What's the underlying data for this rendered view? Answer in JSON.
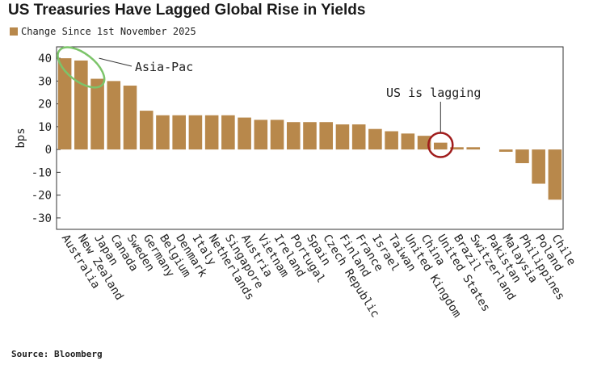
{
  "chart_data": {
    "type": "bar",
    "title": "US Treasuries Have Lagged Global Rise in Yields",
    "legend": "Change Since 1st November 2025",
    "ylabel": "bps",
    "source": "Source: Bloomberg",
    "ylim": [
      -35,
      45
    ],
    "yticks": [
      40,
      30,
      20,
      10,
      0,
      -10,
      -20,
      -30
    ],
    "grid": false,
    "bar_color": "#b8884b",
    "categories": [
      "Australia",
      "New Zealand",
      "Japan",
      "Canada",
      "Sweden",
      "Germany",
      "Belgium",
      "Denmark",
      "Italy",
      "Netherlands",
      "Singapore",
      "Austria",
      "Vietnam",
      "Ireland",
      "Portugal",
      "Spain",
      "Czech Republic",
      "Finland",
      "France",
      "Israel",
      "Taiwan",
      "United Kingdom",
      "China",
      "United States",
      "Brazil",
      "Switzerland",
      "Pakistan",
      "Malaysia",
      "Philippines",
      "Poland",
      "Chile"
    ],
    "values": [
      40,
      39,
      31,
      30,
      28,
      17,
      15,
      15,
      15,
      15,
      15,
      14,
      13,
      13,
      12,
      12,
      12,
      11,
      11,
      9,
      8,
      7,
      6,
      3,
      1,
      1,
      0,
      -1,
      -6,
      -15,
      -22
    ],
    "annotations": [
      {
        "text": "Asia-Pac"
      },
      {
        "text": "US is lagging"
      }
    ]
  }
}
